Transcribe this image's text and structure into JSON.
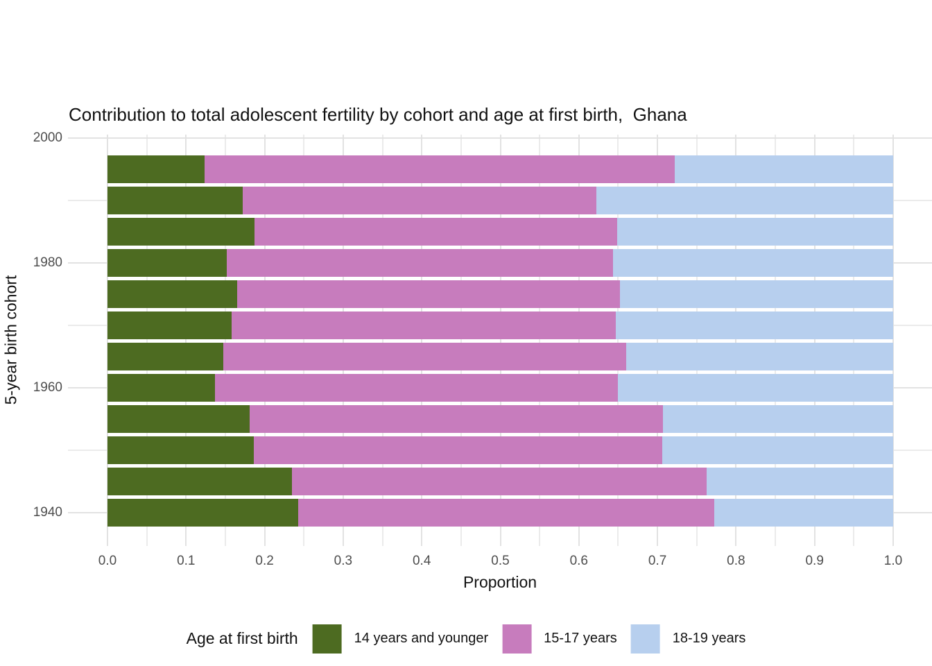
{
  "title": "Contribution to total adolescent fertility by cohort and age at first birth,  Ghana",
  "axes": {
    "x": {
      "label": "Proportion",
      "tick_labels": [
        "0.0",
        "0.1",
        "0.2",
        "0.3",
        "0.4",
        "0.5",
        "0.6",
        "0.7",
        "0.8",
        "0.9",
        "1.0"
      ],
      "tick_values": [
        0.0,
        0.1,
        0.2,
        0.3,
        0.4,
        0.5,
        0.6,
        0.7,
        0.8,
        0.9,
        1.0
      ],
      "minor_tick_values": [
        0.05,
        0.15,
        0.25,
        0.35,
        0.45,
        0.55,
        0.65,
        0.75,
        0.85,
        0.95,
        1.05
      ],
      "range": [
        0,
        1
      ]
    },
    "y": {
      "label": "5-year birth cohort",
      "tick_labels": [
        "2000",
        "1980",
        "1960",
        "1940"
      ],
      "tick_values": [
        2000,
        1980,
        1960,
        1940
      ],
      "minor_tick_values": [
        1990,
        1970,
        1950
      ],
      "range": [
        1937.5,
        1997.5
      ]
    }
  },
  "legend": {
    "title": "Age at first birth",
    "position": "bottom",
    "items": [
      {
        "label": "14 years and younger",
        "color": "#4d6b21"
      },
      {
        "label": "15-17 years",
        "color": "#c77cbd"
      },
      {
        "label": "18-19 years",
        "color": "#b7cfee"
      }
    ]
  },
  "style": {
    "background": "#ffffff",
    "grid_major_color": "#e2e2e2",
    "grid_minor_color": "#ebebeb",
    "tick_text_color": "#4d4d4d",
    "bar_colors": {
      "14_and_younger": "#4d6b21",
      "15_17": "#c77cbd",
      "18_19": "#b7cfee"
    }
  },
  "chart_data": {
    "type": "bar",
    "variant": "horizontal-stacked",
    "title": "Contribution to total adolescent fertility by cohort and age at first birth,  Ghana",
    "xlabel": "Proportion",
    "ylabel": "5-year birth cohort",
    "xlim": [
      0,
      1
    ],
    "grid": true,
    "legend_position": "bottom",
    "categories_note": "5-year birth cohorts listed top-to-bottom as displayed",
    "categories": [
      1995,
      1990,
      1985,
      1980,
      1975,
      1970,
      1965,
      1960,
      1955,
      1950,
      1945,
      1940
    ],
    "series": [
      {
        "name": "14 years and younger",
        "color": "#4d6b21",
        "values": [
          0.124,
          0.172,
          0.187,
          0.152,
          0.165,
          0.158,
          0.147,
          0.137,
          0.181,
          0.186,
          0.235,
          0.243
        ]
      },
      {
        "name": "15-17 years",
        "color": "#c77cbd",
        "values": [
          0.598,
          0.45,
          0.462,
          0.491,
          0.487,
          0.489,
          0.513,
          0.513,
          0.526,
          0.52,
          0.528,
          0.529
        ]
      },
      {
        "name": "18-19 years",
        "color": "#b7cfee",
        "values": [
          0.278,
          0.378,
          0.351,
          0.357,
          0.348,
          0.353,
          0.34,
          0.35,
          0.293,
          0.294,
          0.237,
          0.228
        ]
      }
    ]
  }
}
